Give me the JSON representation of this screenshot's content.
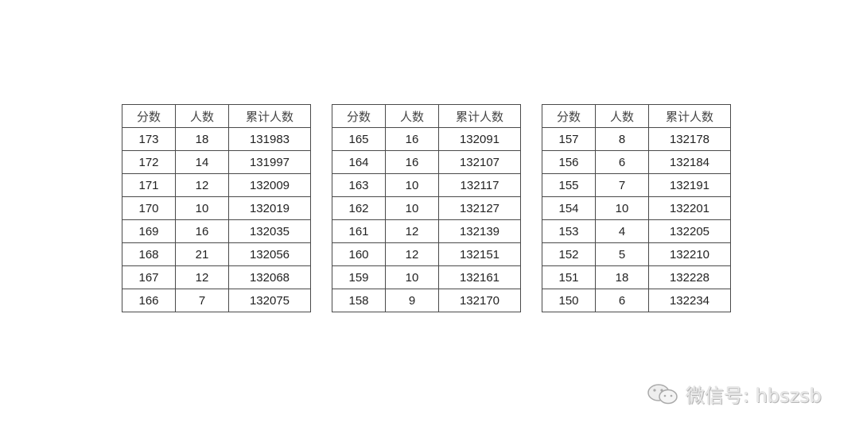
{
  "tables": [
    {
      "headers": [
        "分数",
        "人数",
        "累计人数"
      ],
      "rows": [
        [
          "173",
          "18",
          "131983"
        ],
        [
          "172",
          "14",
          "131997"
        ],
        [
          "171",
          "12",
          "132009"
        ],
        [
          "170",
          "10",
          "132019"
        ],
        [
          "169",
          "16",
          "132035"
        ],
        [
          "168",
          "21",
          "132056"
        ],
        [
          "167",
          "12",
          "132068"
        ],
        [
          "166",
          "7",
          "132075"
        ]
      ]
    },
    {
      "headers": [
        "分数",
        "人数",
        "累计人数"
      ],
      "rows": [
        [
          "165",
          "16",
          "132091"
        ],
        [
          "164",
          "16",
          "132107"
        ],
        [
          "163",
          "10",
          "132117"
        ],
        [
          "162",
          "10",
          "132127"
        ],
        [
          "161",
          "12",
          "132139"
        ],
        [
          "160",
          "12",
          "132151"
        ],
        [
          "159",
          "10",
          "132161"
        ],
        [
          "158",
          "9",
          "132170"
        ]
      ]
    },
    {
      "headers": [
        "分数",
        "人数",
        "累计人数"
      ],
      "rows": [
        [
          "157",
          "8",
          "132178"
        ],
        [
          "156",
          "6",
          "132184"
        ],
        [
          "155",
          "7",
          "132191"
        ],
        [
          "154",
          "10",
          "132201"
        ],
        [
          "153",
          "4",
          "132205"
        ],
        [
          "152",
          "5",
          "132210"
        ],
        [
          "151",
          "18",
          "132228"
        ],
        [
          "150",
          "6",
          "132234"
        ]
      ]
    }
  ],
  "watermark": {
    "text": "微信号: hbszsb",
    "icon": "wechat-icon"
  }
}
